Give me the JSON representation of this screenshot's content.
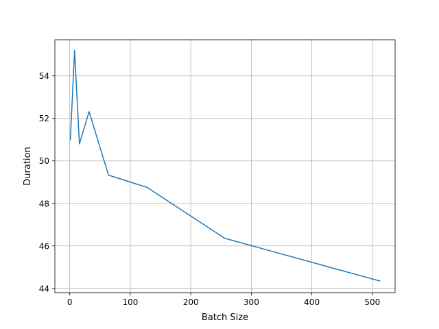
{
  "chart_data": {
    "type": "line",
    "title": "",
    "xlabel": "Batch Size",
    "ylabel": "Duration",
    "xlim": [
      -24.55,
      537.55
    ],
    "ylim": [
      43.8,
      55.7
    ],
    "xticks": [
      0,
      100,
      200,
      300,
      400,
      500
    ],
    "xtick_labels": [
      "0",
      "100",
      "200",
      "300",
      "400",
      "500"
    ],
    "yticks": [
      44,
      46,
      48,
      50,
      52,
      54
    ],
    "ytick_labels": [
      "44",
      "46",
      "48",
      "50",
      "52",
      "54"
    ],
    "grid": true,
    "line_color": "#1f77b4",
    "grid_color": "#b0b0b0",
    "series": [
      {
        "x": [
          1,
          8,
          16,
          32,
          64,
          128,
          256,
          512
        ],
        "y": [
          51.0,
          55.2,
          50.8,
          52.32,
          49.33,
          48.75,
          46.36,
          44.35
        ]
      }
    ]
  }
}
